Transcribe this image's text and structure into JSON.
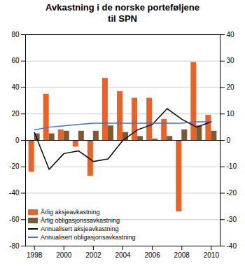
{
  "chart_data": {
    "type": "bar",
    "title": "Avkastning i de norske porteføljene\ntil SPN",
    "x": [
      1998,
      1999,
      2000,
      2001,
      2002,
      2003,
      2004,
      2005,
      2006,
      2007,
      2008,
      2009,
      2010
    ],
    "xlim": [
      1997.4,
      2010.6
    ],
    "xticks": [
      1998,
      2000,
      2002,
      2004,
      2006,
      2008,
      2010
    ],
    "ylim": [
      -80,
      80
    ],
    "yticks": [
      -80,
      -60,
      -40,
      -20,
      0,
      20,
      40,
      60,
      80
    ],
    "y2lim": [
      -40,
      40
    ],
    "y2ticks": [
      -40,
      -30,
      -20,
      -10,
      0,
      10,
      20,
      30,
      40
    ],
    "grid": true,
    "legend": "lower left",
    "series": [
      {
        "name": "Årlig aksjeavkastning",
        "type": "bar",
        "color": "#E8632A",
        "values": [
          -24,
          35,
          8,
          -5,
          -27,
          47,
          37,
          32,
          32,
          16,
          -54,
          59,
          19
        ]
      },
      {
        "name": "Årlig obligasjonssavkastning",
        "type": "bar",
        "color": "#7B5C30",
        "values": [
          5,
          5,
          7,
          7,
          7,
          11,
          6,
          3,
          1,
          3,
          8,
          11,
          7
        ]
      },
      {
        "name": "Annualisert aksjeavkastning",
        "type": "line",
        "axis": "y2",
        "color": "#000000",
        "values": [
          3,
          -11,
          -5,
          -4,
          -8,
          -7,
          0,
          4,
          6,
          12,
          8,
          5,
          7
        ]
      },
      {
        "name": "Annualisert obligasjonsavkastning",
        "type": "line",
        "axis": "y2",
        "color": "#4472C4",
        "values": [
          4,
          5,
          5.5,
          6,
          6.5,
          6.5,
          6.5,
          6.5,
          6.5,
          6.5,
          6.5,
          7,
          7
        ]
      }
    ]
  }
}
